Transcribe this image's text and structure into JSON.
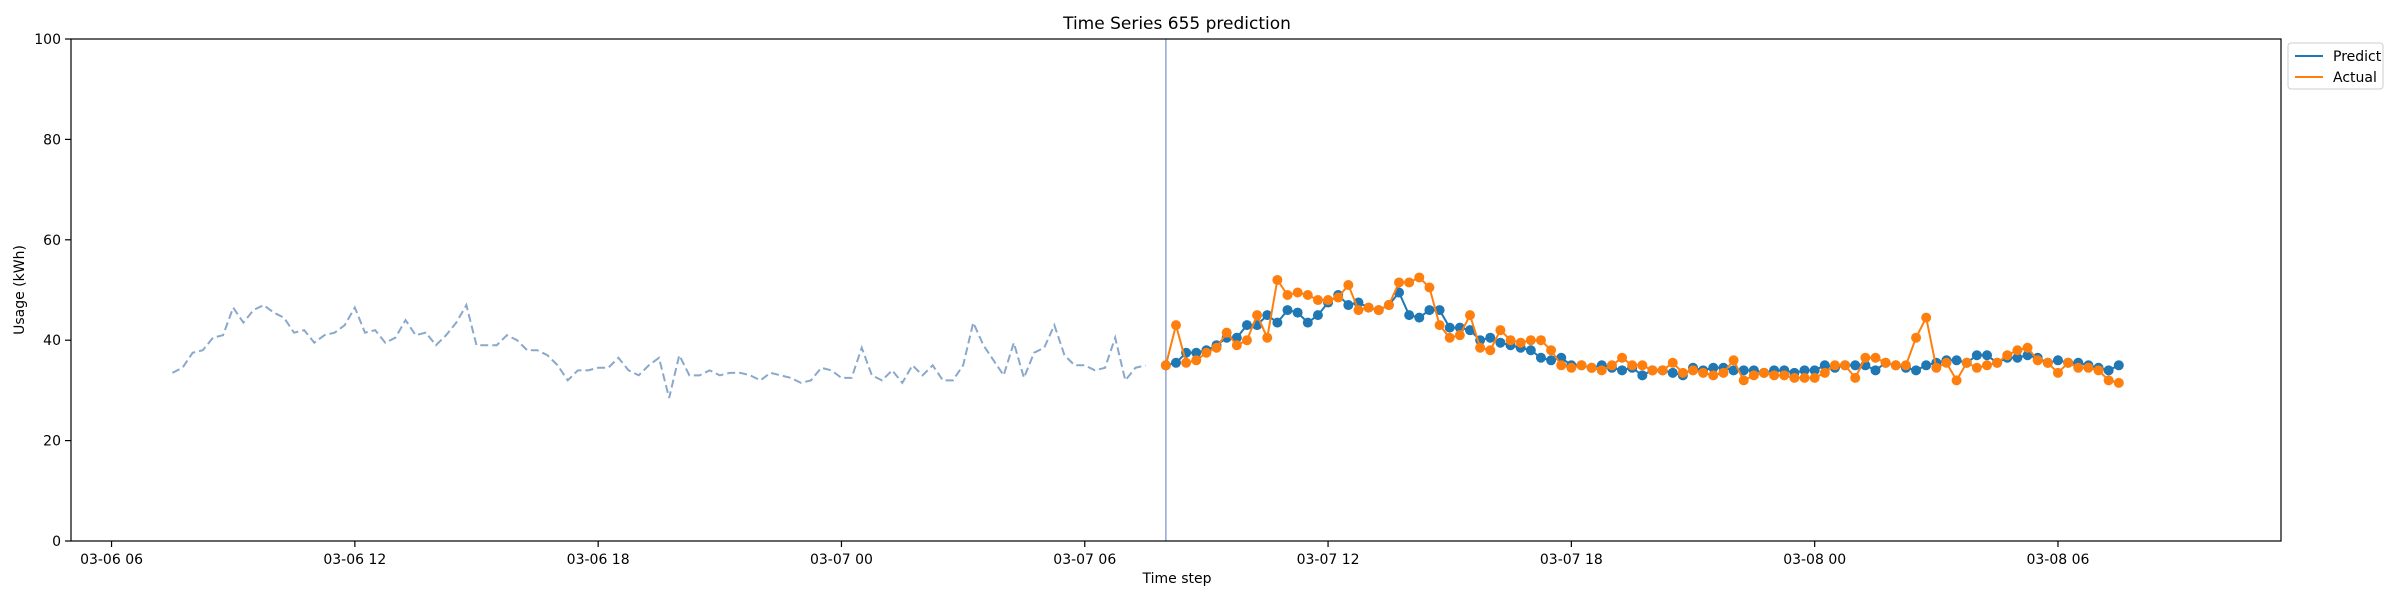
{
  "chart_data": {
    "type": "line",
    "title": "Time Series 655 prediction",
    "xlabel": "Time step",
    "ylabel": "Usage (kWh)",
    "ylim": [
      0,
      100
    ],
    "yticks": [
      0,
      20,
      40,
      60,
      80,
      100
    ],
    "xlim": [
      "2026-03-06 05:00",
      "2026-03-08 11:30"
    ],
    "xticks": [
      {
        "t": "2026-03-06 06:00",
        "label": "03-06 06"
      },
      {
        "t": "2026-03-06 12:00",
        "label": "03-06 12"
      },
      {
        "t": "2026-03-06 18:00",
        "label": "03-06 18"
      },
      {
        "t": "2026-03-07 00:00",
        "label": "03-07 00"
      },
      {
        "t": "2026-03-07 06:00",
        "label": "03-07 06"
      },
      {
        "t": "2026-03-07 12:00",
        "label": "03-07 12"
      },
      {
        "t": "2026-03-07 18:00",
        "label": "03-07 18"
      },
      {
        "t": "2026-03-08 00:00",
        "label": "03-08 00"
      },
      {
        "t": "2026-03-08 06:00",
        "label": "03-08 06"
      }
    ],
    "interval_minutes": 15,
    "forecast_start": "2026-03-07 08:00",
    "history": {
      "start": "2026-03-06 07:30",
      "values": [
        33.5,
        34.5,
        37.5,
        38.0,
        40.5,
        41.0,
        46.5,
        43.5,
        46.0,
        47.0,
        45.5,
        44.5,
        41.5,
        42.0,
        39.5,
        41.0,
        41.5,
        43.0,
        46.5,
        41.5,
        42.0,
        39.5,
        40.5,
        44.0,
        41.0,
        41.5,
        39.0,
        41.0,
        43.5,
        47.0,
        39.0,
        39.0,
        39.0,
        41.0,
        40.0,
        38.0,
        38.0,
        37.0,
        35.0,
        32.0,
        34.0,
        34.0,
        34.5,
        34.5,
        36.5,
        34.0,
        33.0,
        35.0,
        36.5,
        28.5,
        37.0,
        33.0,
        33.0,
        34.0,
        33.0,
        33.5,
        33.5,
        33.0,
        32.0,
        33.5,
        33.0,
        32.5,
        31.5,
        32.0,
        34.5,
        34.0,
        32.5,
        32.5,
        38.5,
        33.0,
        32.0,
        34.0,
        31.5,
        35.0,
        33.0,
        35.0,
        32.0,
        32.0,
        35.0,
        43.5,
        39.0,
        36.0,
        33.0,
        39.5,
        32.5,
        37.5,
        38.5,
        43.0,
        37.0,
        35.0,
        35.0,
        34.0,
        34.5,
        40.5,
        32.0,
        34.5,
        35.0
      ]
    },
    "series": [
      {
        "name": "Predict",
        "color": "#1f77b4",
        "start": "2026-03-07 08:00",
        "values": [
          35.0,
          35.5,
          37.5,
          37.5,
          38.0,
          39.0,
          40.5,
          40.5,
          43.0,
          43.0,
          45.0,
          43.5,
          46.0,
          45.5,
          43.5,
          45.0,
          47.5,
          49.0,
          47.0,
          47.5,
          46.5,
          46.0,
          47.0,
          49.5,
          45.0,
          44.5,
          46.0,
          46.0,
          42.5,
          42.5,
          42.0,
          40.0,
          40.5,
          39.5,
          39.0,
          38.5,
          38.0,
          36.5,
          36.0,
          36.5,
          35.0,
          35.0,
          34.5,
          35.0,
          34.5,
          34.0,
          34.5,
          33.0,
          34.0,
          34.0,
          33.5,
          33.0,
          34.5,
          34.0,
          34.5,
          34.5,
          34.0,
          34.0,
          34.0,
          33.5,
          34.0,
          34.0,
          33.5,
          34.0,
          34.0,
          35.0,
          34.5,
          35.0,
          35.0,
          35.0,
          34.0,
          35.5,
          35.0,
          34.5,
          34.0,
          35.0,
          35.5,
          36.0,
          36.0,
          35.5,
          37.0,
          37.0,
          35.5,
          36.5,
          36.5,
          37.0,
          36.5,
          35.5,
          36.0,
          35.5,
          35.5,
          35.0,
          34.5,
          34.0,
          35.0
        ]
      },
      {
        "name": "Actual",
        "color": "#ff7f0e",
        "start": "2026-03-07 08:00",
        "values": [
          35.0,
          43.0,
          35.5,
          36.0,
          37.5,
          38.5,
          41.5,
          39.0,
          40.0,
          45.0,
          40.5,
          52.0,
          49.0,
          49.5,
          49.0,
          48.0,
          48.0,
          48.5,
          51.0,
          46.0,
          46.5,
          46.0,
          47.0,
          51.5,
          51.5,
          52.5,
          50.5,
          43.0,
          40.5,
          41.0,
          45.0,
          38.5,
          38.0,
          42.0,
          40.0,
          39.5,
          40.0,
          40.0,
          38.0,
          35.0,
          34.5,
          35.0,
          34.5,
          34.0,
          35.0,
          36.5,
          35.0,
          35.0,
          34.0,
          34.0,
          35.5,
          33.5,
          34.0,
          33.5,
          33.0,
          33.5,
          36.0,
          32.0,
          33.0,
          33.5,
          33.0,
          33.0,
          32.5,
          32.5,
          32.5,
          33.5,
          35.0,
          35.0,
          32.5,
          36.5,
          36.5,
          35.5,
          35.0,
          35.0,
          40.5,
          44.5,
          34.5,
          35.5,
          32.0,
          35.5,
          34.5,
          35.0,
          35.5,
          37.0,
          38.0,
          38.5,
          36.0,
          35.5,
          33.5,
          35.5,
          34.5,
          34.5,
          34.0,
          32.0,
          31.5
        ]
      }
    ],
    "history_color": "#8aa8cc",
    "forecast_line_color": "#8ea6d6",
    "legend_placement": "top-right, outside plot",
    "grid": false
  }
}
